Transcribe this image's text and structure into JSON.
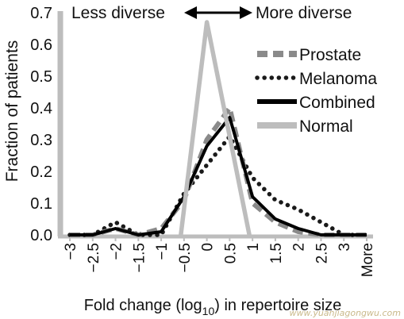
{
  "chart_data": {
    "type": "line",
    "xlabel_main": "Fold change (log",
    "xlabel_sub": "10",
    "xlabel_tail": ") in repertoire size",
    "ylabel": "Fraction of patients",
    "annotations": {
      "left": "Less diverse",
      "right": "More diverse"
    },
    "categories": [
      "−3",
      "−2.5",
      "−2",
      "−1.5",
      "−1",
      "−0.5",
      "0",
      "0.5",
      "1",
      "1.5",
      "2",
      "2.5",
      "3",
      "More"
    ],
    "yticks": [
      "0.0",
      "0.1",
      "0.2",
      "0.3",
      "0.4",
      "0.5",
      "0.6",
      "0.7"
    ],
    "ylim": [
      0,
      0.7
    ],
    "legend_position": "top-right",
    "series": [
      {
        "name": "Prostate",
        "style": "dashed",
        "color": "#8a8a8a",
        "values": [
          0,
          0,
          0.02,
          0,
          0.02,
          0.11,
          0.3,
          0.4,
          0.1,
          0.04,
          0.01,
          0,
          0,
          0
        ]
      },
      {
        "name": "Melanoma",
        "style": "dotted",
        "color": "#1a1a1a",
        "values": [
          0,
          0,
          0.04,
          0,
          0,
          0.13,
          0.22,
          0.31,
          0.18,
          0.11,
          0.08,
          0.04,
          0,
          0
        ]
      },
      {
        "name": "Combined",
        "style": "solid",
        "color": "#000000",
        "values": [
          0,
          0,
          0.02,
          0,
          0.01,
          0.12,
          0.28,
          0.37,
          0.12,
          0.05,
          0.02,
          0,
          0,
          0
        ]
      },
      {
        "name": "Normal",
        "style": "solid",
        "color": "#bdbdbd",
        "values": [
          0,
          0,
          0,
          0,
          0,
          0,
          0.67,
          0,
          0,
          0,
          0,
          0,
          0,
          0
        ]
      }
    ]
  },
  "watermark": "www.yuanjiagongwu.com"
}
